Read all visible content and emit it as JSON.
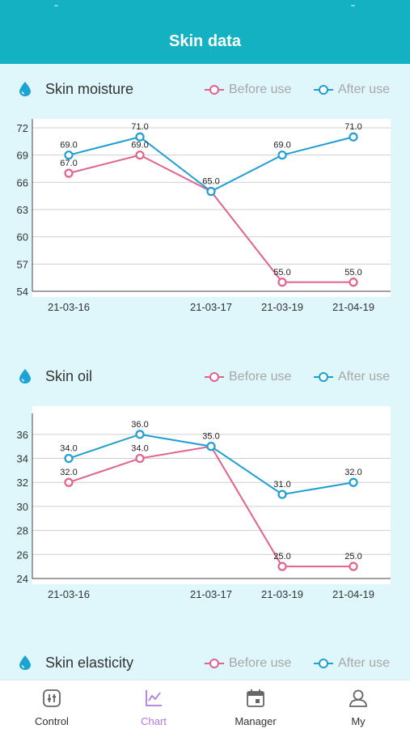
{
  "header": {
    "title": "Skin data"
  },
  "legend": {
    "before": "Before use",
    "after": "After use"
  },
  "colors": {
    "before": "#e0628f",
    "after": "#1e9fd0",
    "accent": "#13b1c1"
  },
  "sections": [
    {
      "title": "Skin moisture",
      "icon": "water-drop-icon"
    },
    {
      "title": "Skin oil",
      "icon": "water-drop-icon"
    },
    {
      "title": "Skin elasticity",
      "icon": "water-drop-icon"
    }
  ],
  "chart_data": [
    {
      "type": "line",
      "title": "Skin moisture",
      "categories": [
        "21-03-16",
        "",
        "21-03-17",
        "21-03-19",
        "21-04-19"
      ],
      "x_tick_labels": [
        "21-03-16",
        "21-03-17",
        "21-03-19",
        "21-04-19"
      ],
      "series": [
        {
          "name": "Before use",
          "values": [
            67.0,
            69.0,
            65.0,
            55.0,
            55.0
          ]
        },
        {
          "name": "After use",
          "values": [
            69.0,
            71.0,
            65.0,
            69.0,
            71.0
          ]
        }
      ],
      "value_labels": {
        "before": [
          "67.0",
          "69.0",
          "65.0",
          "55.0",
          "55.0"
        ],
        "after": [
          "69.0",
          "71.0",
          "",
          "69.0",
          "71.0"
        ]
      },
      "yticks": [
        54,
        57,
        60,
        63,
        66,
        69,
        72
      ],
      "ylim": [
        54,
        72
      ],
      "grid": true,
      "legend_position": "top-right"
    },
    {
      "type": "line",
      "title": "Skin oil",
      "categories": [
        "21-03-16",
        "",
        "21-03-17",
        "21-03-19",
        "21-04-19"
      ],
      "x_tick_labels": [
        "21-03-16",
        "21-03-17",
        "21-03-19",
        "21-04-19"
      ],
      "series": [
        {
          "name": "Before use",
          "values": [
            32.0,
            34.0,
            35.0,
            25.0,
            25.0
          ]
        },
        {
          "name": "After use",
          "values": [
            34.0,
            36.0,
            35.0,
            31.0,
            32.0
          ]
        }
      ],
      "value_labels": {
        "before": [
          "32.0",
          "34.0",
          "35.0",
          "25.0",
          "25.0"
        ],
        "after": [
          "34.0",
          "36.0",
          "",
          "31.0",
          "32.0"
        ]
      },
      "yticks": [
        24,
        26,
        28,
        30,
        32,
        34,
        36
      ],
      "ylim": [
        24,
        37
      ],
      "grid": true,
      "legend_position": "top-right"
    }
  ],
  "tabs": [
    {
      "label": "Control",
      "icon": "sliders-icon"
    },
    {
      "label": "Chart",
      "icon": "chart-icon",
      "active": true
    },
    {
      "label": "Manager",
      "icon": "calendar-icon"
    },
    {
      "label": "My",
      "icon": "user-icon"
    }
  ]
}
